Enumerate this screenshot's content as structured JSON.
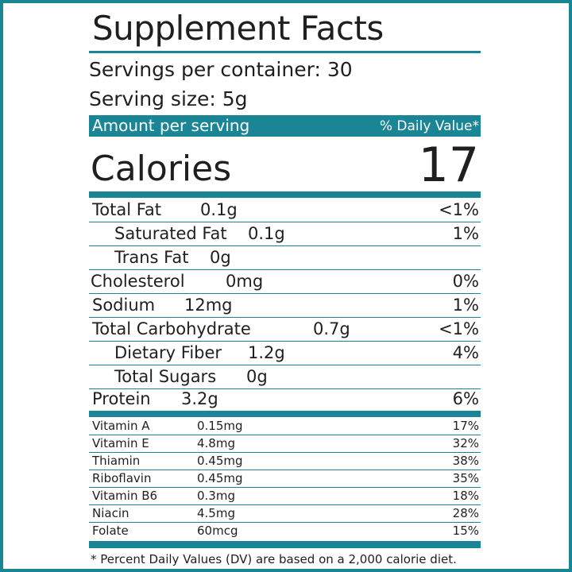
{
  "title": "Supplement Facts",
  "servings_per_container": "Servings per container: 30",
  "serving_size": "Serving size: 5g",
  "amount_header": "Amount per serving",
  "dv_header": "% Daily Value*",
  "calories_label": "Calories",
  "calories_value": "17",
  "nutrients": [
    {
      "name": "Total Fat",
      "amount": "0.1g",
      "dv": "<1%"
    },
    {
      "name": "Saturated Fat",
      "amount": "0.1g",
      "dv": "1%"
    },
    {
      "name": "Trans Fat",
      "amount": "0g",
      "dv": ""
    },
    {
      "name": "Cholesterol",
      "amount": "0mg",
      "dv": "0%"
    },
    {
      "name": "Sodium",
      "amount": "12mg",
      "dv": "1%"
    },
    {
      "name": "Total Carbohydrate",
      "amount": "0.7g",
      "dv": "<1%"
    },
    {
      "name": "Dietary Fiber",
      "amount": "1.2g",
      "dv": "4%"
    },
    {
      "name": "Total Sugars",
      "amount": "0g",
      "dv": ""
    },
    {
      "name": "Protein",
      "amount": "3.2g",
      "dv": "6%"
    }
  ],
  "vitamins": [
    {
      "name": "Vitamin A",
      "amount": "0.15mg",
      "dv": "17%"
    },
    {
      "name": "Vitamin E",
      "amount": "4.8mg",
      "dv": "32%"
    },
    {
      "name": "Thiamin",
      "amount": "0.45mg",
      "dv": "38%"
    },
    {
      "name": "Riboflavin",
      "amount": "0.45mg",
      "dv": "35%"
    },
    {
      "name": "Vitamin B6",
      "amount": "0.3mg",
      "dv": "18%"
    },
    {
      "name": "Niacin",
      "amount": "4.5mg",
      "dv": "28%"
    },
    {
      "name": "Folate",
      "amount": "60mcg",
      "dv": "15%"
    }
  ],
  "footnote": "* Percent Daily Values (DV) are based on a 2,000 calorie diet.",
  "colors": {
    "accent": "#1a8595",
    "text": "#1f1f1f"
  }
}
